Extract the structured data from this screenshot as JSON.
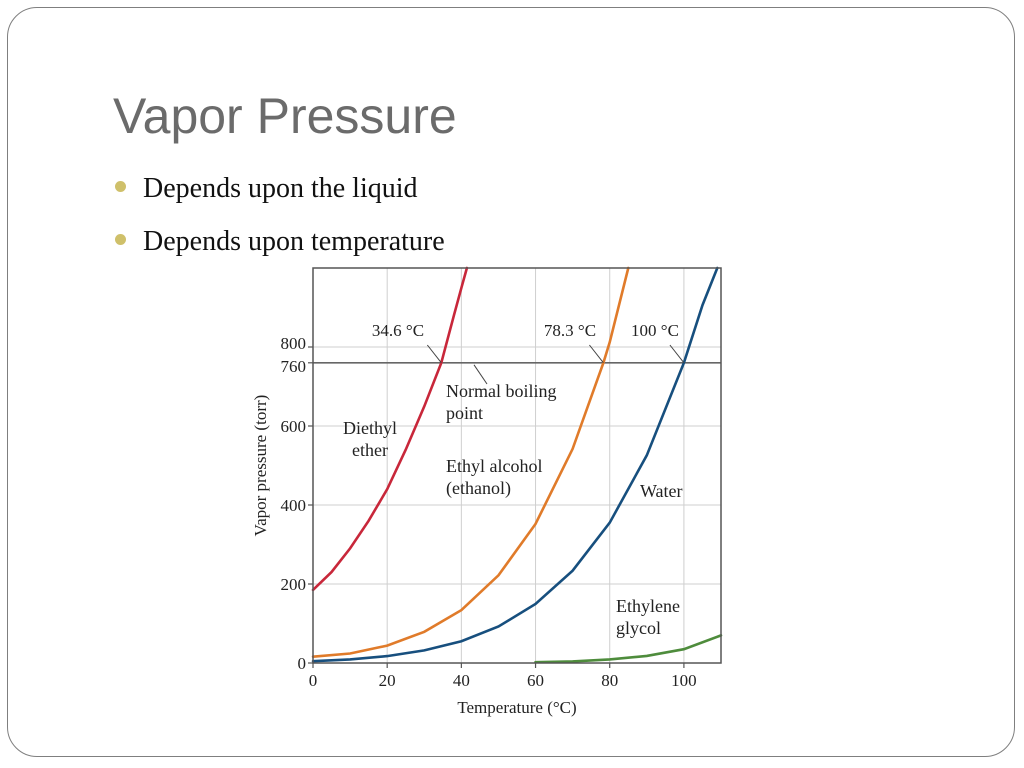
{
  "slide": {
    "title": "Vapor Pressure",
    "bullets": [
      "Depends upon the liquid",
      "Depends upon temperature"
    ],
    "bullet_color": "#cfc06a"
  },
  "chart_data": {
    "type": "line",
    "xlabel": "Temperature (°C)",
    "ylabel": "Vapor pressure (torr)",
    "xlim": [
      0,
      110
    ],
    "ylim": [
      0,
      1000
    ],
    "x_ticks": [
      0,
      20,
      40,
      60,
      80,
      100
    ],
    "y_ticks": [
      0,
      200,
      400,
      600,
      760,
      800
    ],
    "grid": true,
    "reference_line": {
      "y": 760,
      "label": "Normal boiling point"
    },
    "series": [
      {
        "name": "Diethyl ether",
        "color": "#c8273a",
        "boiling_label": "34.6 °C",
        "boiling_x": 34.6,
        "points": [
          [
            0,
            185
          ],
          [
            5,
            230
          ],
          [
            10,
            290
          ],
          [
            15,
            360
          ],
          [
            20,
            440
          ],
          [
            25,
            540
          ],
          [
            30,
            650
          ],
          [
            34.6,
            760
          ],
          [
            38,
            880
          ],
          [
            40,
            950
          ],
          [
            41.5,
            1000
          ]
        ]
      },
      {
        "name": "Ethyl alcohol (ethanol)",
        "color": "#e07b2a",
        "boiling_label": "78.3 °C",
        "boiling_x": 78.3,
        "points": [
          [
            0,
            16
          ],
          [
            10,
            24
          ],
          [
            20,
            44
          ],
          [
            30,
            79
          ],
          [
            40,
            134
          ],
          [
            50,
            222
          ],
          [
            60,
            352
          ],
          [
            70,
            542
          ],
          [
            78.3,
            760
          ],
          [
            80,
            812
          ],
          [
            85,
            1000
          ]
        ]
      },
      {
        "name": "Water",
        "color": "#174f7e",
        "boiling_label": "100 °C",
        "boiling_x": 100,
        "points": [
          [
            0,
            4.6
          ],
          [
            10,
            9.2
          ],
          [
            20,
            17.5
          ],
          [
            30,
            31.8
          ],
          [
            40,
            55.3
          ],
          [
            50,
            92.5
          ],
          [
            60,
            149.4
          ],
          [
            70,
            233.7
          ],
          [
            80,
            355.1
          ],
          [
            90,
            525.8
          ],
          [
            100,
            760
          ],
          [
            105,
            906
          ],
          [
            109,
            1000
          ]
        ]
      },
      {
        "name": "Ethylene glycol",
        "color": "#4e8c3c",
        "points": [
          [
            60,
            2
          ],
          [
            70,
            4
          ],
          [
            80,
            9
          ],
          [
            90,
            18
          ],
          [
            100,
            35
          ],
          [
            110,
            70
          ]
        ]
      }
    ]
  }
}
